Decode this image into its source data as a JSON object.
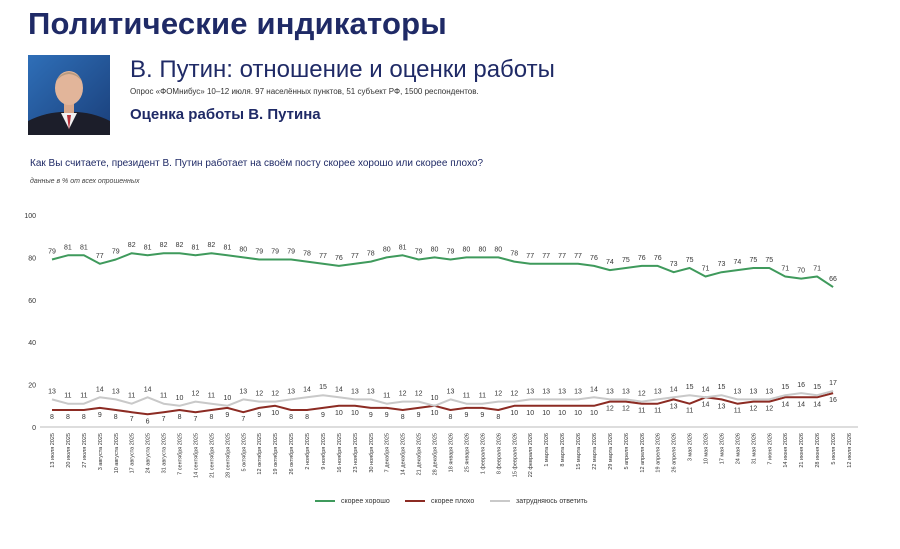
{
  "header": {
    "title": "Политические индикаторы",
    "subtitle": "В. Путин: отношение и оценки работы",
    "survey_note": "Опрос «ФОМнибус» 10–12 июля. 97 населённых пунктов, 51 субъект РФ, 1500 респондентов.",
    "section_title": "Оценка работы В. Путина"
  },
  "question": "Как Вы считаете, президент В. Путин работает на своём посту скорее хорошо или скорее плохо?",
  "units_note": "данные в % от всех опрошенных",
  "colors": {
    "good": "#3f9a5c",
    "bad": "#8c2b23",
    "hard": "#c9c9c9",
    "title": "#1f2a66"
  },
  "chart_data": {
    "type": "line",
    "ylim": [
      0,
      100
    ],
    "yticks": [
      0,
      20,
      40,
      60,
      80,
      100
    ],
    "grid": false,
    "legend_position": "bottom",
    "x": [
      "13 июля 2025",
      "20 июля 2025",
      "27 июля 2025",
      "3 августа 2025",
      "10 августа 2025",
      "17 августа 2025",
      "24 августа 2025",
      "31 августа 2025",
      "7 сентября 2025",
      "14 сентября 2025",
      "21 сентября 2025",
      "28 сентября 2025",
      "5 октября 2025",
      "12 октября 2025",
      "19 октября 2025",
      "26 октября 2025",
      "2 ноября 2025",
      "9 ноября 2025",
      "16 ноября 2025",
      "23 ноября 2025",
      "30 ноября 2025",
      "7 декабря 2025",
      "14 декабря 2025",
      "21 декабря 2025",
      "28 декабря 2025",
      "18 января 2026",
      "25 января 2026",
      "1 февраля 2026",
      "8 февраля 2026",
      "15 февраля 2026",
      "22 февраля 2026",
      "1 марта 2026",
      "8 марта 2026",
      "15 марта 2026",
      "22 марта 2026",
      "29 марта 2026",
      "5 апреля 2026",
      "12 апреля 2026",
      "19 апреля 2026",
      "26 апреля 2026",
      "3 мая 2026",
      "10 мая 2026",
      "17 мая 2026",
      "24 мая 2026",
      "31 мая 2026",
      "7 июня 2026",
      "14 июня 2026",
      "21 июня 2026",
      "28 июня 2026",
      "5 июля 2026",
      "12 июля 2026"
    ],
    "series": [
      {
        "name": "скорее хорошо",
        "key": "good",
        "values": [
          79,
          81,
          81,
          77,
          79,
          82,
          81,
          82,
          82,
          81,
          82,
          81,
          80,
          79,
          79,
          79,
          78,
          77,
          76,
          77,
          78,
          80,
          81,
          79,
          80,
          79,
          80,
          80,
          80,
          78,
          77,
          77,
          77,
          77,
          76,
          74,
          75,
          76,
          76,
          73,
          75,
          71,
          73,
          74,
          75,
          75,
          71,
          70,
          71,
          66,
          null
        ]
      },
      {
        "name": "скорее плохо",
        "key": "bad",
        "values": [
          8,
          8,
          8,
          9,
          8,
          7,
          6,
          7,
          8,
          7,
          8,
          9,
          7,
          9,
          10,
          8,
          8,
          9,
          10,
          10,
          9,
          9,
          8,
          9,
          10,
          8,
          9,
          9,
          8,
          10,
          10,
          10,
          10,
          10,
          10,
          12,
          12,
          11,
          11,
          13,
          11,
          14,
          13,
          11,
          12,
          12,
          14,
          14,
          14,
          16,
          null
        ]
      },
      {
        "name": "затрудняюсь ответить",
        "key": "hard",
        "values": [
          13,
          11,
          11,
          14,
          13,
          11,
          14,
          11,
          10,
          12,
          11,
          10,
          13,
          12,
          12,
          13,
          14,
          15,
          14,
          13,
          13,
          11,
          12,
          12,
          10,
          13,
          11,
          11,
          12,
          12,
          13,
          13,
          13,
          13,
          14,
          13,
          13,
          12,
          13,
          14,
          15,
          14,
          15,
          13,
          13,
          13,
          15,
          16,
          15,
          17,
          null
        ]
      }
    ]
  }
}
